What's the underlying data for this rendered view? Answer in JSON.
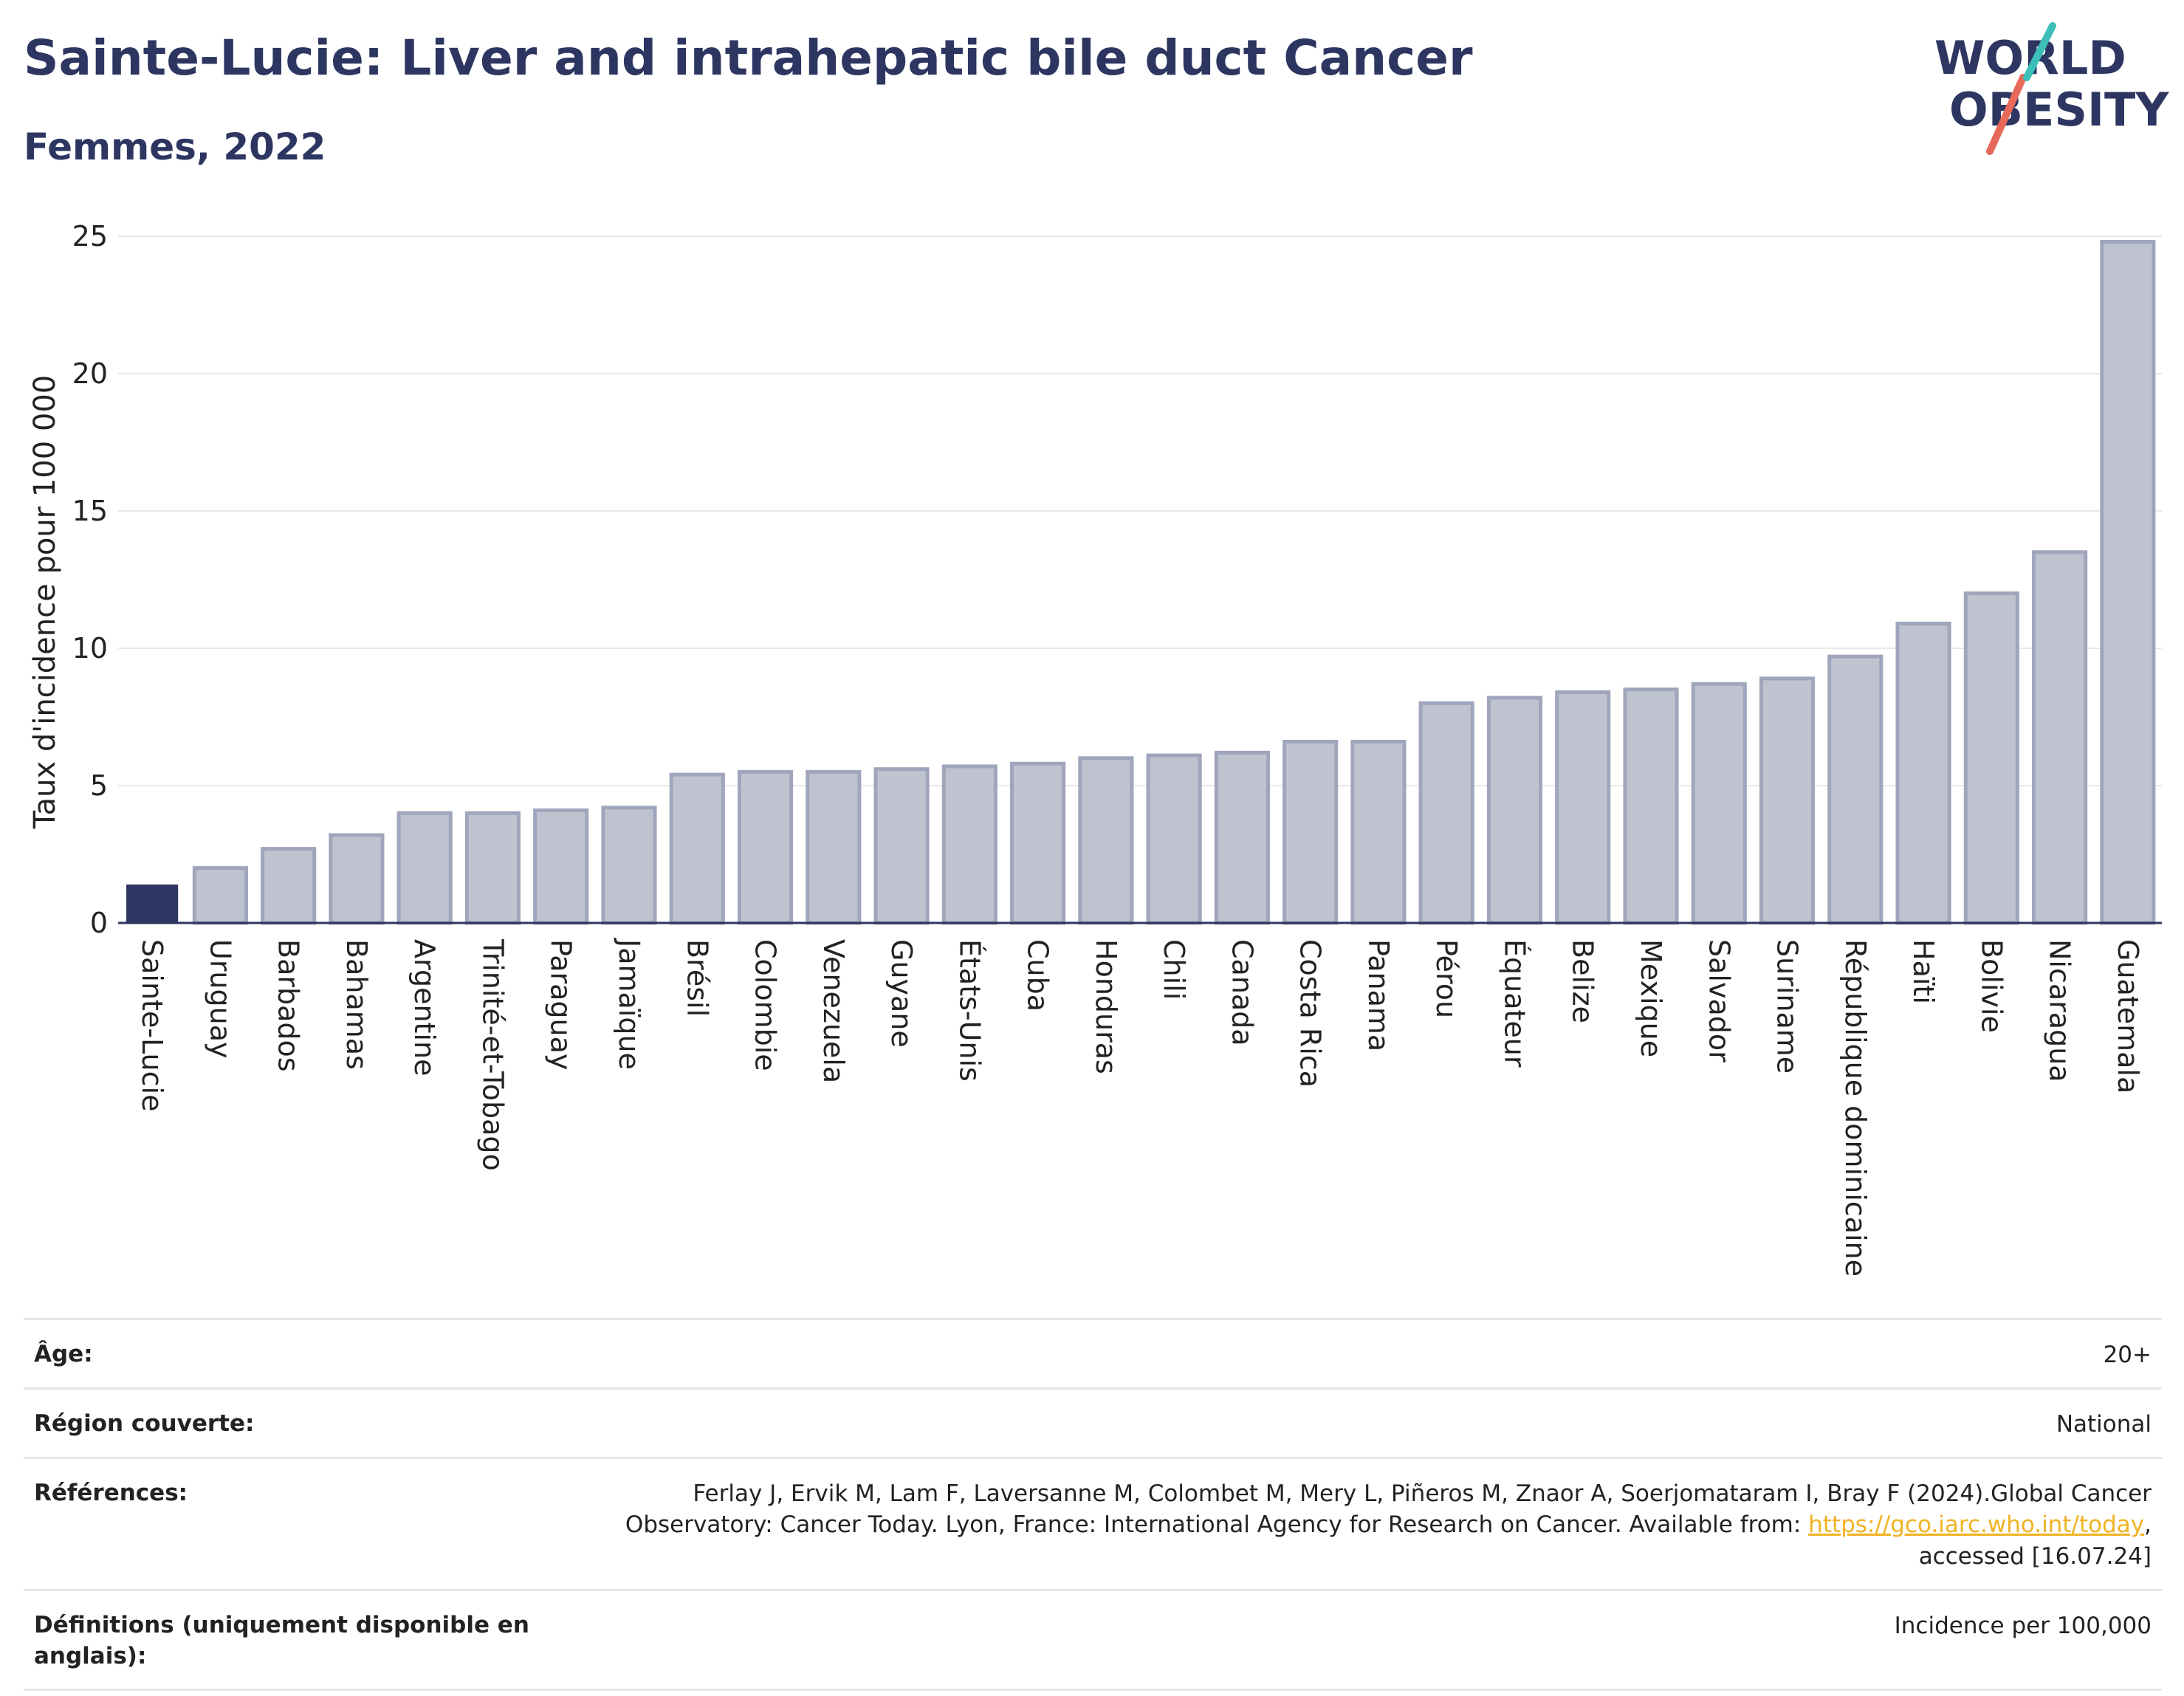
{
  "header": {
    "title": "Sainte-Lucie: Liver and intrahepatic bile duct Cancer",
    "subtitle": "Femmes, 2022"
  },
  "logo": {
    "line1": "WORLD",
    "line2": "OBESITY",
    "colors": {
      "text": "#2d3661",
      "slash_red": "#e8695a",
      "slash_teal": "#3bbfb8"
    }
  },
  "colors": {
    "highlight_bar": "#2d3661",
    "other_bar_fill": "#bfc3cf",
    "other_bar_stroke": "#9fa6bc",
    "grid": "#e8e8e8",
    "axis": "#2d3661"
  },
  "chart_data": {
    "type": "bar",
    "title": "Sainte-Lucie: Liver and intrahepatic bile duct Cancer",
    "subtitle": "Femmes, 2022",
    "xlabel": "",
    "ylabel": "Taux d'incidence pour 100 000",
    "ylim": [
      0,
      25
    ],
    "yticks": [
      0,
      5,
      10,
      15,
      20,
      25
    ],
    "grid": true,
    "highlight": "Sainte-Lucie",
    "categories": [
      "Sainte-Lucie",
      "Uruguay",
      "Barbados",
      "Bahamas",
      "Argentine",
      "Trinité-et-Tobago",
      "Paraguay",
      "Jamaïque",
      "Brésil",
      "Colombie",
      "Venezuela",
      "Guyane",
      "États-Unis",
      "Cuba",
      "Honduras",
      "Chili",
      "Canada",
      "Costa Rica",
      "Panama",
      "Pérou",
      "Équateur",
      "Belize",
      "Mexique",
      "Salvador",
      "Suriname",
      "République dominicaine",
      "Haïti",
      "Bolivie",
      "Nicaragua",
      "Guatemala"
    ],
    "values": [
      1.4,
      2.0,
      2.7,
      3.2,
      4.0,
      4.0,
      4.1,
      4.2,
      5.4,
      5.5,
      5.5,
      5.6,
      5.7,
      5.8,
      6.0,
      6.1,
      6.2,
      6.6,
      6.6,
      8.0,
      8.2,
      8.4,
      8.5,
      8.7,
      8.9,
      9.7,
      10.9,
      12.0,
      13.5,
      24.8
    ]
  },
  "info": {
    "rows": [
      {
        "label": "Âge:",
        "value": "20+"
      },
      {
        "label": "Région couverte:",
        "value": "National"
      },
      {
        "label": "Références:",
        "value_before": "Ferlay J, Ervik M, Lam F, Laversanne M, Colombet M, Mery L, Piñeros M, Znaor A, Soerjomataram I, Bray F (2024).Global Cancer Observatory: Cancer Today. Lyon, France: International Agency for Research on Cancer. Available from: ",
        "link": "https://gco.iarc.who.int/today",
        "value_after": ", accessed [16.07.24]"
      },
      {
        "label": "Définitions (uniquement disponible en anglais):",
        "value": "Incidence per 100,000"
      }
    ]
  }
}
